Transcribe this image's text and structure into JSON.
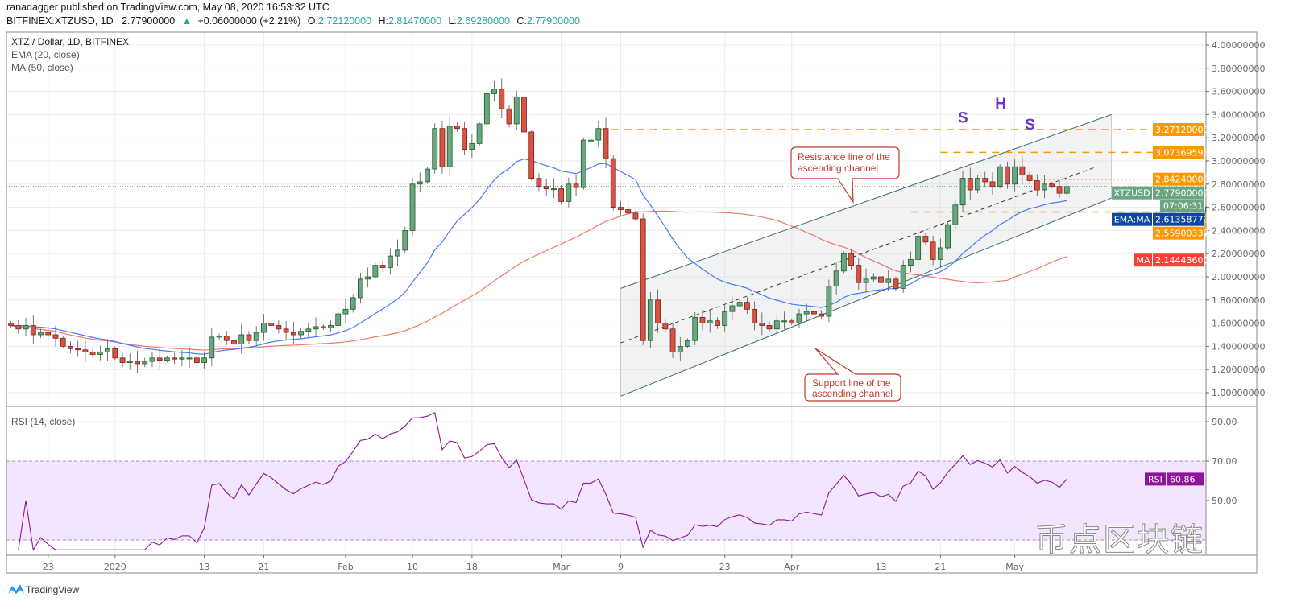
{
  "header": {
    "published": "ranadagger published on TradingView.com, May 08, 2020 16:53:32 UTC",
    "symbol_line": "BITFINEX:XTZUSD, 1D",
    "last": "2.77900000",
    "change": "+0.06000000 (+2.21%)",
    "o_label": "O:",
    "o": "2.72120000",
    "h_label": "H:",
    "h": "2.81470000",
    "l_label": "L:",
    "l": "2.69280000",
    "c_label": "C:",
    "c": "2.77900000"
  },
  "legend": {
    "title": "XTZ / Dollar, 1D, BITFINEX",
    "ema": "EMA (20, close)",
    "ma": "MA (50, close)",
    "rsi": "RSI (14, close)"
  },
  "footer": {
    "brand": "TradingView"
  },
  "watermark": "币点区块链",
  "colors": {
    "up": "#6ba583",
    "down": "#d75442",
    "ema": "#2962ff",
    "ma": "#f0614f",
    "level": "#ff9800",
    "rsi": "#8e1599",
    "rsi_band": "#f3e5fd",
    "channel": "#3d6b67",
    "annotation": "#c0392b",
    "pattern": "#6a35c9"
  },
  "chart_data": [
    {
      "type": "candlestick",
      "x_range": [
        "2019-12-18",
        "2020-05-08"
      ],
      "interval": "1D",
      "close": [
        1.58,
        1.55,
        1.58,
        1.5,
        1.52,
        1.5,
        1.47,
        1.4,
        1.38,
        1.37,
        1.35,
        1.33,
        1.35,
        1.38,
        1.3,
        1.26,
        1.27,
        1.25,
        1.27,
        1.3,
        1.28,
        1.3,
        1.29,
        1.3,
        1.3,
        1.26,
        1.3,
        1.48,
        1.49,
        1.45,
        1.42,
        1.5,
        1.45,
        1.52,
        1.6,
        1.58,
        1.55,
        1.52,
        1.5,
        1.53,
        1.55,
        1.57,
        1.56,
        1.58,
        1.68,
        1.72,
        1.82,
        1.98,
        2.0,
        2.1,
        2.08,
        2.18,
        2.23,
        2.4,
        2.8,
        2.82,
        2.93,
        3.28,
        2.95,
        3.3,
        3.28,
        3.1,
        3.15,
        3.32,
        3.58,
        3.62,
        3.45,
        3.32,
        3.55,
        3.25,
        2.85,
        2.78,
        2.76,
        2.76,
        2.65,
        2.8,
        2.77,
        3.18,
        3.18,
        3.28,
        3.02,
        2.6,
        2.58,
        2.55,
        2.5,
        1.45,
        1.8,
        1.6,
        1.55,
        1.35,
        1.4,
        1.45,
        1.65,
        1.6,
        1.62,
        1.58,
        1.7,
        1.75,
        1.78,
        1.72,
        1.6,
        1.58,
        1.55,
        1.62,
        1.62,
        1.6,
        1.68,
        1.7,
        1.68,
        1.66,
        1.92,
        2.05,
        2.2,
        2.1,
        1.95,
        1.98,
        2.0,
        1.95,
        1.98,
        1.9,
        2.1,
        2.15,
        2.35,
        2.3,
        2.15,
        2.25,
        2.45,
        2.62,
        2.85,
        2.75,
        2.85,
        2.82,
        2.78,
        2.95,
        2.8,
        2.95,
        2.88,
        2.83,
        2.75,
        2.8,
        2.78,
        2.7212,
        2.779
      ],
      "last_candle": {
        "date": "2020-05-08",
        "open": 2.7212,
        "high": 2.8147,
        "low": 2.6928,
        "close": 2.779
      },
      "ylim": [
        0.9,
        4.1
      ],
      "y_ticks": [
        "4.00000000",
        "3.80000000",
        "3.60000000",
        "3.40000000",
        "3.20000000",
        "3.00000000",
        "2.80000000",
        "2.60000000",
        "2.40000000",
        "2.20000000",
        "2.00000000",
        "1.80000000",
        "1.60000000",
        "1.40000000",
        "1.20000000",
        "1.00000000"
      ],
      "x_ticks": [
        {
          "date": "2019-12-23",
          "label": "23"
        },
        {
          "date": "2020-01-01",
          "label": "2020"
        },
        {
          "date": "2020-01-13",
          "label": "13"
        },
        {
          "date": "2020-01-21",
          "label": "21"
        },
        {
          "date": "2020-02-01",
          "label": "Feb"
        },
        {
          "date": "2020-02-10",
          "label": "10"
        },
        {
          "date": "2020-02-18",
          "label": "18"
        },
        {
          "date": "2020-03-01",
          "label": "Mar"
        },
        {
          "date": "2020-03-09",
          "label": "9"
        },
        {
          "date": "2020-03-23",
          "label": "23"
        },
        {
          "date": "2020-04-01",
          "label": "Apr"
        },
        {
          "date": "2020-04-13",
          "label": "13"
        },
        {
          "date": "2020-04-21",
          "label": "21"
        },
        {
          "date": "2020-05-01",
          "label": "May"
        }
      ],
      "indicators": {
        "ema_period": 20,
        "ma_period": 50,
        "ema_last": "2.61358773",
        "ma_last": "2.14443600"
      },
      "price_labels": [
        {
          "label": "",
          "value": "3.27120000",
          "color": "#ff9800"
        },
        {
          "label": "",
          "value": "3.07369598",
          "color": "#ff9800"
        },
        {
          "label": "",
          "value": "2.84240000",
          "color": "#ff9800"
        },
        {
          "label": "XTZUSD",
          "value": "2.77900000",
          "color": "#6ba583",
          "timer": "07:06:31"
        },
        {
          "label": "EMA:MA",
          "value": "2.61358773",
          "color": "#0d47a1"
        },
        {
          "label": "",
          "value": "2.55900337",
          "color": "#ff9800"
        },
        {
          "label": "MA",
          "value": "2.14443600",
          "color": "#f44336"
        }
      ],
      "levels": [
        {
          "price": 3.2712,
          "from": "2020-03-06",
          "style": "dashed"
        },
        {
          "price": 3.07369598,
          "from": "2020-04-21",
          "style": "dashed"
        },
        {
          "price": 2.8424,
          "from": "2020-04-28",
          "style": "dotted"
        },
        {
          "price": 2.55900337,
          "from": "2020-04-17",
          "style": "dashed"
        }
      ],
      "channel": {
        "resistance": [
          [
            "2020-03-09",
            1.9
          ],
          [
            "2020-05-14",
            3.4
          ]
        ],
        "support": [
          [
            "2020-03-09",
            0.97
          ],
          [
            "2020-05-14",
            2.68
          ]
        ],
        "midline": [
          [
            "2020-03-09",
            1.43
          ],
          [
            "2020-05-12",
            2.95
          ]
        ]
      },
      "annotations": [
        {
          "text": "Resistance line of the",
          "text2": "ascending channel"
        },
        {
          "text": "Support line of the",
          "text2": "ascending channel"
        }
      ],
      "pattern_labels": [
        {
          "text": "S",
          "date": "2020-04-24",
          "price": 3.33
        },
        {
          "text": "H",
          "date": "2020-04-29",
          "price": 3.45
        },
        {
          "text": "S",
          "date": "2020-05-03",
          "price": 3.27
        }
      ]
    },
    {
      "type": "line",
      "title": "RSI (14, close)",
      "ylim": [
        25,
        95
      ],
      "y_ticks": [
        "90.00",
        "70.00",
        "50.00"
      ],
      "band": [
        30,
        70
      ],
      "last": "60.86",
      "label": "RSI"
    }
  ]
}
